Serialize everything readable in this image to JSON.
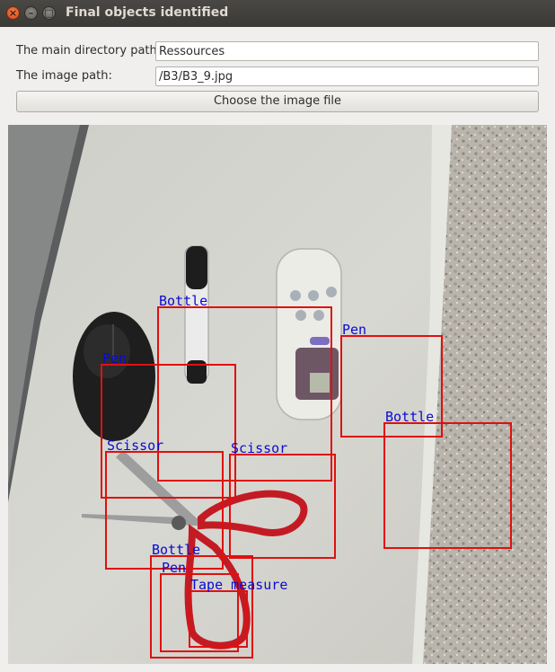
{
  "window": {
    "title": "Final objects identified",
    "controls": {
      "close": "×",
      "minimize": "–",
      "maximize": "□"
    }
  },
  "form": {
    "dir_label": "The main directory path:",
    "dir_value": "Ressources",
    "image_label": "The image path:",
    "image_value": "/B3/B3_9.jpg",
    "choose_button": "Choose the image file"
  },
  "detections": {
    "box_color": "#e01010",
    "label_color": "#0a0ad2",
    "items": [
      {
        "label": "Bottle"
      },
      {
        "label": "Pen"
      },
      {
        "label": "Pen"
      },
      {
        "label": "Bottle"
      },
      {
        "label": "Scissor"
      },
      {
        "label": "Scissor"
      },
      {
        "label": "Bottle"
      },
      {
        "label": "Pen"
      },
      {
        "label": "Tape measure"
      }
    ]
  }
}
